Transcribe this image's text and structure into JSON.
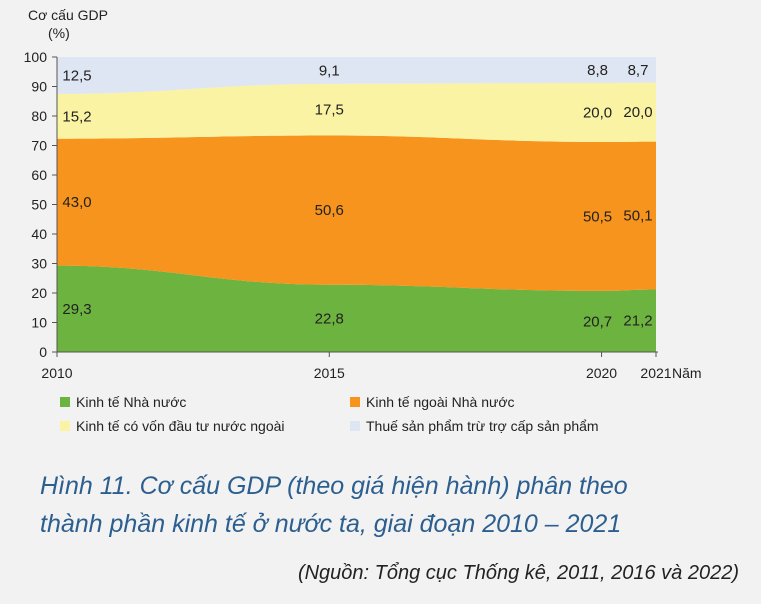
{
  "chart_data": {
    "type": "area",
    "stacked": true,
    "percent": true,
    "ylabel_line1": "Cơ cấu GDP",
    "ylabel_line2": "(%)",
    "xlabel": "Năm",
    "x": [
      2010,
      2015,
      2020,
      2021
    ],
    "ylim": [
      0,
      100
    ],
    "yticks": [
      0,
      10,
      20,
      30,
      40,
      50,
      60,
      70,
      80,
      90,
      100
    ],
    "grid": false,
    "series": [
      {
        "name": "Kinh tế Nhà nước",
        "values": [
          29.3,
          22.8,
          20.7,
          21.2
        ],
        "labels": [
          "29,3",
          "22,8",
          "20,7",
          "21,2"
        ],
        "color": "#6db33f"
      },
      {
        "name": "Kinh tế ngoài Nhà nước",
        "values": [
          43.0,
          50.6,
          50.5,
          50.1
        ],
        "labels": [
          "43,0",
          "50,6",
          "50,5",
          "50,1"
        ],
        "color": "#f7941d"
      },
      {
        "name": "Kinh tế có vốn đầu tư nước ngoài",
        "values": [
          15.2,
          17.5,
          20.0,
          20.0
        ],
        "labels": [
          "15,2",
          "17,5",
          "20,0",
          "20,0"
        ],
        "color": "#fbf3a4"
      },
      {
        "name": "Thuế sản phẩm trừ trợ cấp sản phẩm",
        "values": [
          12.5,
          9.1,
          8.8,
          8.7
        ],
        "labels": [
          "12,5",
          "9,1",
          "8,8",
          "8,7"
        ],
        "color": "#dfe6f3"
      }
    ],
    "legend_position": "bottom"
  },
  "caption": {
    "line1": "Hình 11. Cơ cấu GDP (theo giá hiện hành) phân theo",
    "line2": "thành phần kinh tế ở nước ta, giai đoạn 2010 – 2021"
  },
  "source": "(Nguồn: Tổng cục Thống kê, 2011, 2016 và 2022)"
}
